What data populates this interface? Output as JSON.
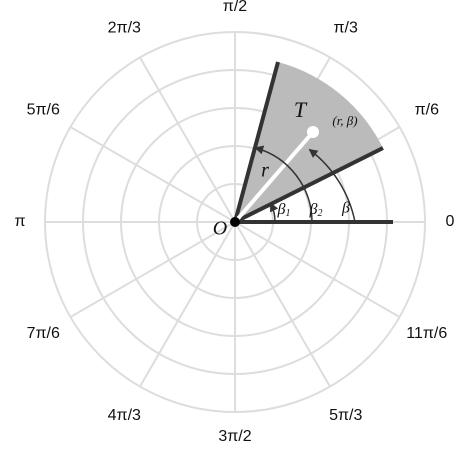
{
  "angle_labels": [
    "0",
    "π/6",
    "π/3",
    "π/2",
    "2π/3",
    "5π/6",
    "π",
    "7π/6",
    "4π/3",
    "3π/2",
    "5π/3",
    "11π/6"
  ],
  "symbols": {
    "origin": "O",
    "target": "T",
    "coords": "(r, β)",
    "radius": "r",
    "beta1": {
      "base": "β",
      "sub": "1"
    },
    "beta2": {
      "base": "β",
      "sub": "2"
    },
    "beta": "β"
  }
}
